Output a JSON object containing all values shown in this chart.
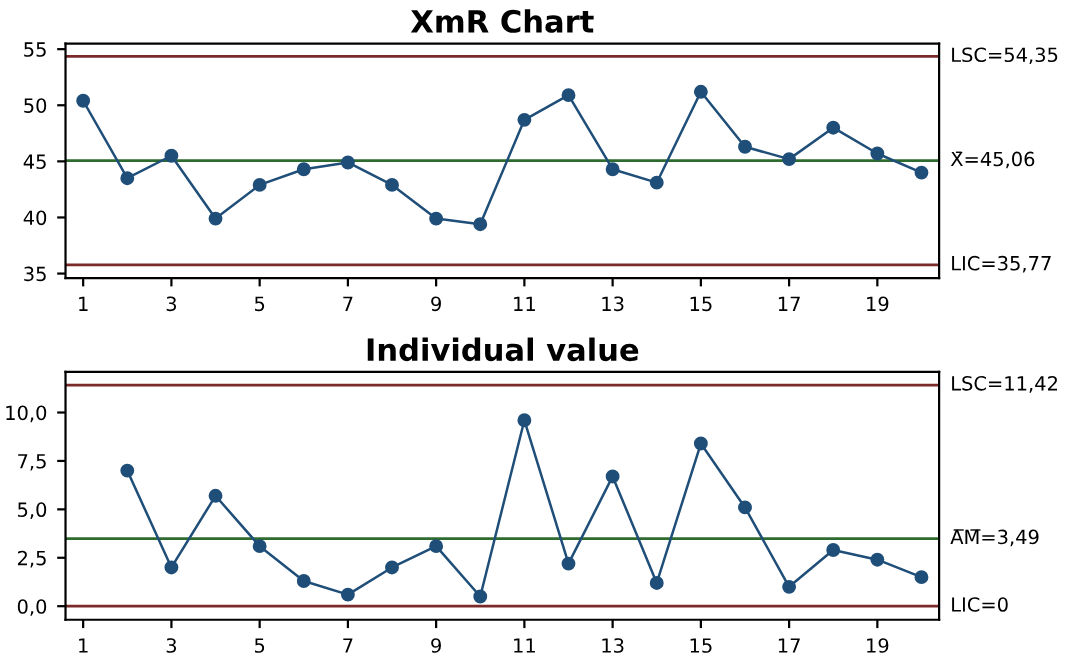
{
  "chart_data": [
    {
      "type": "line",
      "title": "XmR Chart",
      "marker": "circle",
      "grid": false,
      "legend": false,
      "x": [
        1,
        2,
        3,
        4,
        5,
        6,
        7,
        8,
        9,
        10,
        11,
        12,
        13,
        14,
        15,
        16,
        17,
        18,
        19,
        20
      ],
      "series": [
        {
          "color": "#1f4e79",
          "values": [
            50.4,
            43.5,
            45.5,
            39.9,
            42.9,
            44.3,
            44.9,
            42.9,
            39.9,
            39.4,
            48.7,
            50.9,
            44.3,
            43.1,
            51.2,
            46.3,
            45.2,
            48.0,
            45.7,
            44.0
          ]
        }
      ],
      "xlim": [
        0.6,
        20.4
      ],
      "xticks": [
        1,
        3,
        5,
        7,
        9,
        11,
        13,
        15,
        17,
        19
      ],
      "ylim": [
        34.6,
        55.5
      ],
      "yticks": [
        35,
        40,
        45,
        50,
        55
      ],
      "ref_lines": [
        {
          "axis": "y",
          "value": 54.35,
          "label": "LSC=54,35",
          "color": "#7b2a2a"
        },
        {
          "axis": "y",
          "value": 45.06,
          "label": "X̄=45,06",
          "color": "#2e6b2e"
        },
        {
          "axis": "y",
          "value": 35.77,
          "label": "LIC=35,77",
          "color": "#7b2a2a"
        }
      ]
    },
    {
      "type": "line",
      "title": "Individual value",
      "marker": "circle",
      "grid": false,
      "legend": false,
      "x": [
        2,
        3,
        4,
        5,
        6,
        7,
        8,
        9,
        10,
        11,
        12,
        13,
        14,
        15,
        16,
        17,
        18,
        19,
        20
      ],
      "series": [
        {
          "color": "#1f4e79",
          "values": [
            7.0,
            2.0,
            5.7,
            3.1,
            1.3,
            0.6,
            2.0,
            3.1,
            0.5,
            9.6,
            2.2,
            6.7,
            1.2,
            8.4,
            5.1,
            1.0,
            2.9,
            2.4,
            1.5
          ]
        }
      ],
      "xlim": [
        0.6,
        20.4
      ],
      "xticks": [
        1,
        3,
        5,
        7,
        9,
        11,
        13,
        15,
        17,
        19
      ],
      "ylim": [
        -0.7,
        12.1
      ],
      "yticks": [
        {
          "value": 0,
          "label": "0,0"
        },
        {
          "value": 2.5,
          "label": "2,5"
        },
        {
          "value": 5,
          "label": "5,0"
        },
        {
          "value": 7.5,
          "label": "7,5"
        },
        {
          "value": 10,
          "label": "10,0"
        }
      ],
      "ref_lines": [
        {
          "axis": "y",
          "value": 11.42,
          "label": "LSC=11,42",
          "color": "#7b2a2a"
        },
        {
          "axis": "y",
          "value": 3.49,
          "label": "A̅M̅=3,49",
          "color": "#2e6b2e"
        },
        {
          "axis": "y",
          "value": 0,
          "label": "LIC=0",
          "color": "#7b2a2a"
        }
      ]
    }
  ]
}
